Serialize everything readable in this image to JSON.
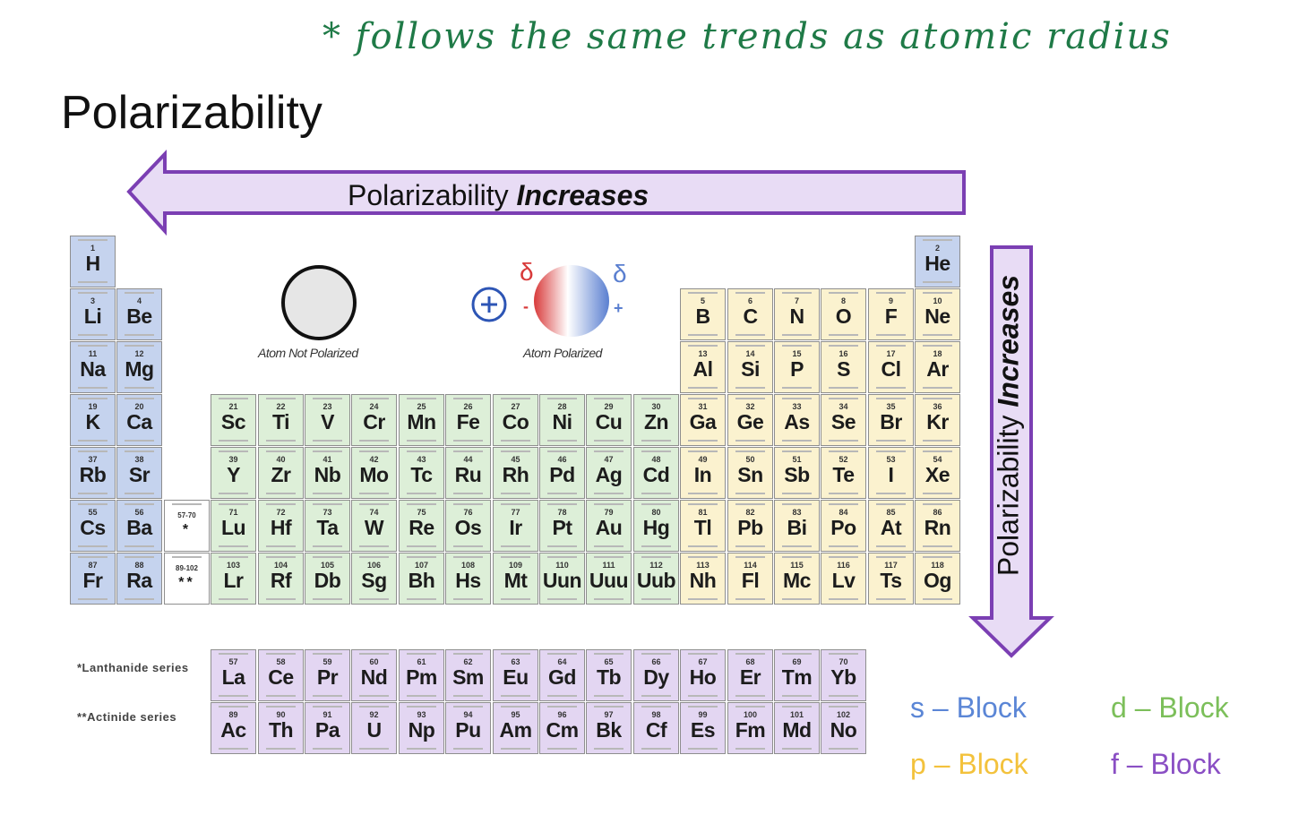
{
  "handwritten_note": "* follows the same trends as atomic radius",
  "title": "Polarizability",
  "horizontal_arrow": {
    "text": "Polarizability",
    "emphasis": "Increases",
    "direction": "left",
    "color": "#7b3fb3",
    "fill": "#e8dcf5"
  },
  "vertical_arrow": {
    "text": "Polarizability",
    "emphasis": "Increases",
    "direction": "down",
    "color": "#7b3fb3",
    "fill": "#e8dcf5"
  },
  "atoms": {
    "not_polarized_caption": "Atom Not Polarized",
    "polarized_caption": "Atom Polarized",
    "delta_left": "δ",
    "delta_right": "δ",
    "sign_left": "-",
    "sign_right": "+",
    "ion_charge": "+"
  },
  "colors": {
    "s_block": "#c5d3ee",
    "p_block": "#fbf2cf",
    "d_block": "#ddefd8",
    "f_block": "#e3d6f2"
  },
  "main_table": [
    {
      "r": 0,
      "c": 0,
      "n": "1",
      "sym": "H",
      "b": "s"
    },
    {
      "r": 0,
      "c": 17,
      "n": "2",
      "sym": "He",
      "b": "s"
    },
    {
      "r": 1,
      "c": 0,
      "n": "3",
      "sym": "Li",
      "b": "s"
    },
    {
      "r": 1,
      "c": 1,
      "n": "4",
      "sym": "Be",
      "b": "s"
    },
    {
      "r": 1,
      "c": 12,
      "n": "5",
      "sym": "B",
      "b": "p"
    },
    {
      "r": 1,
      "c": 13,
      "n": "6",
      "sym": "C",
      "b": "p"
    },
    {
      "r": 1,
      "c": 14,
      "n": "7",
      "sym": "N",
      "b": "p"
    },
    {
      "r": 1,
      "c": 15,
      "n": "8",
      "sym": "O",
      "b": "p"
    },
    {
      "r": 1,
      "c": 16,
      "n": "9",
      "sym": "F",
      "b": "p"
    },
    {
      "r": 1,
      "c": 17,
      "n": "10",
      "sym": "Ne",
      "b": "p"
    },
    {
      "r": 2,
      "c": 0,
      "n": "11",
      "sym": "Na",
      "b": "s"
    },
    {
      "r": 2,
      "c": 1,
      "n": "12",
      "sym": "Mg",
      "b": "s"
    },
    {
      "r": 2,
      "c": 12,
      "n": "13",
      "sym": "Al",
      "b": "p"
    },
    {
      "r": 2,
      "c": 13,
      "n": "14",
      "sym": "Si",
      "b": "p"
    },
    {
      "r": 2,
      "c": 14,
      "n": "15",
      "sym": "P",
      "b": "p"
    },
    {
      "r": 2,
      "c": 15,
      "n": "16",
      "sym": "S",
      "b": "p"
    },
    {
      "r": 2,
      "c": 16,
      "n": "17",
      "sym": "Cl",
      "b": "p"
    },
    {
      "r": 2,
      "c": 17,
      "n": "18",
      "sym": "Ar",
      "b": "p"
    },
    {
      "r": 3,
      "c": 0,
      "n": "19",
      "sym": "K",
      "b": "s"
    },
    {
      "r": 3,
      "c": 1,
      "n": "20",
      "sym": "Ca",
      "b": "s"
    },
    {
      "r": 3,
      "c": 3,
      "n": "21",
      "sym": "Sc",
      "b": "d"
    },
    {
      "r": 3,
      "c": 4,
      "n": "22",
      "sym": "Ti",
      "b": "d"
    },
    {
      "r": 3,
      "c": 5,
      "n": "23",
      "sym": "V",
      "b": "d"
    },
    {
      "r": 3,
      "c": 6,
      "n": "24",
      "sym": "Cr",
      "b": "d"
    },
    {
      "r": 3,
      "c": 7,
      "n": "25",
      "sym": "Mn",
      "b": "d"
    },
    {
      "r": 3,
      "c": 8,
      "n": "26",
      "sym": "Fe",
      "b": "d"
    },
    {
      "r": 3,
      "c": 9,
      "n": "27",
      "sym": "Co",
      "b": "d"
    },
    {
      "r": 3,
      "c": 10,
      "n": "28",
      "sym": "Ni",
      "b": "d"
    },
    {
      "r": 3,
      "c": 11,
      "n": "29",
      "sym": "Cu",
      "b": "d"
    },
    {
      "r": 3,
      "c": 12,
      "n": "30",
      "sym": "Zn",
      "b": "d"
    },
    {
      "r": 3,
      "c": 13,
      "n": "31",
      "sym": "Ga",
      "b": "p"
    },
    {
      "r": 3,
      "c": 14,
      "n": "32",
      "sym": "Ge",
      "b": "p"
    },
    {
      "r": 3,
      "c": 15,
      "n": "33",
      "sym": "As",
      "b": "p"
    },
    {
      "r": 3,
      "c": 16,
      "n": "34",
      "sym": "Se",
      "b": "p"
    },
    {
      "r": 3,
      "c": 17,
      "n": "35",
      "sym": "Br",
      "b": "p"
    },
    {
      "r": 3,
      "c": 18,
      "n": "36",
      "sym": "Kr",
      "b": "p"
    },
    {
      "r": 4,
      "c": 0,
      "n": "37",
      "sym": "Rb",
      "b": "s"
    },
    {
      "r": 4,
      "c": 1,
      "n": "38",
      "sym": "Sr",
      "b": "s"
    },
    {
      "r": 4,
      "c": 3,
      "n": "39",
      "sym": "Y",
      "b": "d"
    },
    {
      "r": 4,
      "c": 4,
      "n": "40",
      "sym": "Zr",
      "b": "d"
    },
    {
      "r": 4,
      "c": 5,
      "n": "41",
      "sym": "Nb",
      "b": "d"
    },
    {
      "r": 4,
      "c": 6,
      "n": "42",
      "sym": "Mo",
      "b": "d"
    },
    {
      "r": 4,
      "c": 7,
      "n": "43",
      "sym": "Tc",
      "b": "d"
    },
    {
      "r": 4,
      "c": 8,
      "n": "44",
      "sym": "Ru",
      "b": "d"
    },
    {
      "r": 4,
      "c": 9,
      "n": "45",
      "sym": "Rh",
      "b": "d"
    },
    {
      "r": 4,
      "c": 10,
      "n": "46",
      "sym": "Pd",
      "b": "d"
    },
    {
      "r": 4,
      "c": 11,
      "n": "47",
      "sym": "Ag",
      "b": "d"
    },
    {
      "r": 4,
      "c": 12,
      "n": "48",
      "sym": "Cd",
      "b": "d"
    },
    {
      "r": 4,
      "c": 13,
      "n": "49",
      "sym": "In",
      "b": "p"
    },
    {
      "r": 4,
      "c": 14,
      "n": "50",
      "sym": "Sn",
      "b": "p"
    },
    {
      "r": 4,
      "c": 15,
      "n": "51",
      "sym": "Sb",
      "b": "p"
    },
    {
      "r": 4,
      "c": 16,
      "n": "52",
      "sym": "Te",
      "b": "p"
    },
    {
      "r": 4,
      "c": 17,
      "n": "53",
      "sym": "I",
      "b": "p"
    },
    {
      "r": 4,
      "c": 18,
      "n": "54",
      "sym": "Xe",
      "b": "p"
    },
    {
      "r": 5,
      "c": 0,
      "n": "55",
      "sym": "Cs",
      "b": "s"
    },
    {
      "r": 5,
      "c": 1,
      "n": "56",
      "sym": "Ba",
      "b": "s"
    },
    {
      "r": 5,
      "c": 2,
      "n": "57-70",
      "sym": "*",
      "b": "ph"
    },
    {
      "r": 5,
      "c": 3,
      "n": "71",
      "sym": "Lu",
      "b": "d"
    },
    {
      "r": 5,
      "c": 4,
      "n": "72",
      "sym": "Hf",
      "b": "d"
    },
    {
      "r": 5,
      "c": 5,
      "n": "73",
      "sym": "Ta",
      "b": "d"
    },
    {
      "r": 5,
      "c": 6,
      "n": "74",
      "sym": "W",
      "b": "d"
    },
    {
      "r": 5,
      "c": 7,
      "n": "75",
      "sym": "Re",
      "b": "d"
    },
    {
      "r": 5,
      "c": 8,
      "n": "76",
      "sym": "Os",
      "b": "d"
    },
    {
      "r": 5,
      "c": 9,
      "n": "77",
      "sym": "Ir",
      "b": "d"
    },
    {
      "r": 5,
      "c": 10,
      "n": "78",
      "sym": "Pt",
      "b": "d"
    },
    {
      "r": 5,
      "c": 11,
      "n": "79",
      "sym": "Au",
      "b": "d"
    },
    {
      "r": 5,
      "c": 12,
      "n": "80",
      "sym": "Hg",
      "b": "d"
    },
    {
      "r": 5,
      "c": 13,
      "n": "81",
      "sym": "Tl",
      "b": "p"
    },
    {
      "r": 5,
      "c": 14,
      "n": "82",
      "sym": "Pb",
      "b": "p"
    },
    {
      "r": 5,
      "c": 15,
      "n": "83",
      "sym": "Bi",
      "b": "p"
    },
    {
      "r": 5,
      "c": 16,
      "n": "84",
      "sym": "Po",
      "b": "p"
    },
    {
      "r": 5,
      "c": 17,
      "n": "85",
      "sym": "At",
      "b": "p"
    },
    {
      "r": 5,
      "c": 18,
      "n": "86",
      "sym": "Rn",
      "b": "p"
    },
    {
      "r": 6,
      "c": 0,
      "n": "87",
      "sym": "Fr",
      "b": "s"
    },
    {
      "r": 6,
      "c": 1,
      "n": "88",
      "sym": "Ra",
      "b": "s"
    },
    {
      "r": 6,
      "c": 2,
      "n": "89-102",
      "sym": "**",
      "b": "ph"
    },
    {
      "r": 6,
      "c": 3,
      "n": "103",
      "sym": "Lr",
      "b": "d"
    },
    {
      "r": 6,
      "c": 4,
      "n": "104",
      "sym": "Rf",
      "b": "d"
    },
    {
      "r": 6,
      "c": 5,
      "n": "105",
      "sym": "Db",
      "b": "d"
    },
    {
      "r": 6,
      "c": 6,
      "n": "106",
      "sym": "Sg",
      "b": "d"
    },
    {
      "r": 6,
      "c": 7,
      "n": "107",
      "sym": "Bh",
      "b": "d"
    },
    {
      "r": 6,
      "c": 8,
      "n": "108",
      "sym": "Hs",
      "b": "d"
    },
    {
      "r": 6,
      "c": 9,
      "n": "109",
      "sym": "Mt",
      "b": "d"
    },
    {
      "r": 6,
      "c": 10,
      "n": "110",
      "sym": "Uun",
      "b": "d"
    },
    {
      "r": 6,
      "c": 11,
      "n": "111",
      "sym": "Uuu",
      "b": "d"
    },
    {
      "r": 6,
      "c": 12,
      "n": "112",
      "sym": "Uub",
      "b": "d"
    },
    {
      "r": 6,
      "c": 13,
      "n": "113",
      "sym": "Nh",
      "b": "p"
    },
    {
      "r": 6,
      "c": 14,
      "n": "114",
      "sym": "Fl",
      "b": "p"
    },
    {
      "r": 6,
      "c": 15,
      "n": "115",
      "sym": "Mc",
      "b": "p"
    },
    {
      "r": 6,
      "c": 16,
      "n": "116",
      "sym": "Lv",
      "b": "p"
    },
    {
      "r": 6,
      "c": 17,
      "n": "117",
      "sym": "Ts",
      "b": "p"
    },
    {
      "r": 6,
      "c": 18,
      "n": "118",
      "sym": "Og",
      "b": "p"
    }
  ],
  "lanthanides": {
    "label": "*Lanthanide series",
    "elements": [
      {
        "n": "57",
        "sym": "La"
      },
      {
        "n": "58",
        "sym": "Ce"
      },
      {
        "n": "59",
        "sym": "Pr"
      },
      {
        "n": "60",
        "sym": "Nd"
      },
      {
        "n": "61",
        "sym": "Pm"
      },
      {
        "n": "62",
        "sym": "Sm"
      },
      {
        "n": "63",
        "sym": "Eu"
      },
      {
        "n": "64",
        "sym": "Gd"
      },
      {
        "n": "65",
        "sym": "Tb"
      },
      {
        "n": "66",
        "sym": "Dy"
      },
      {
        "n": "67",
        "sym": "Ho"
      },
      {
        "n": "68",
        "sym": "Er"
      },
      {
        "n": "69",
        "sym": "Tm"
      },
      {
        "n": "70",
        "sym": "Yb"
      }
    ]
  },
  "actinides": {
    "label": "**Actinide series",
    "elements": [
      {
        "n": "89",
        "sym": "Ac"
      },
      {
        "n": "90",
        "sym": "Th"
      },
      {
        "n": "91",
        "sym": "Pa"
      },
      {
        "n": "92",
        "sym": "U"
      },
      {
        "n": "93",
        "sym": "Np"
      },
      {
        "n": "94",
        "sym": "Pu"
      },
      {
        "n": "95",
        "sym": "Am"
      },
      {
        "n": "96",
        "sym": "Cm"
      },
      {
        "n": "97",
        "sym": "Bk"
      },
      {
        "n": "98",
        "sym": "Cf"
      },
      {
        "n": "99",
        "sym": "Es"
      },
      {
        "n": "100",
        "sym": "Fm"
      },
      {
        "n": "101",
        "sym": "Md"
      },
      {
        "n": "102",
        "sym": "No"
      }
    ]
  },
  "legend": [
    {
      "label": "s – Block",
      "color": "#5b86d6"
    },
    {
      "label": "d – Block",
      "color": "#7cbf5a"
    },
    {
      "label": "p – Block",
      "color": "#f3c23c"
    },
    {
      "label": "f – Block",
      "color": "#8a4fc4"
    }
  ]
}
